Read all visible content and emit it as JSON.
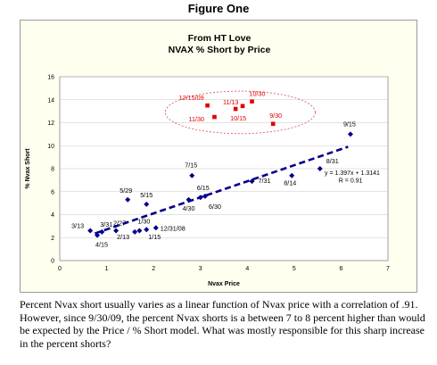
{
  "figure_label": "Figure One",
  "caption": "Percent Nvax short usually varies as a linear function of Nvax price with a correlation of .91. However, since 9/30/09, the percent Nvax shorts is a between 7 to 8 percent higher than would be expected by the Price / % Short model.  What was mostly responsible for this sharp increase in the percent shorts?",
  "chart_data": {
    "type": "scatter",
    "title": "From HT Love",
    "subtitle": "NVAX % Short by Price",
    "xlabel": "Nvax Price",
    "ylabel": "% Nvax Short",
    "xlim": [
      0,
      7
    ],
    "ylim": [
      0,
      16
    ],
    "x_ticks": [
      0,
      1,
      2,
      3,
      4,
      5,
      6,
      7
    ],
    "y_ticks": [
      0,
      2,
      4,
      6,
      8,
      10,
      12,
      14,
      16
    ],
    "grid": "horizontal",
    "series": [
      {
        "color": "#00008b",
        "marker": "diamond",
        "points": [
          {
            "x": 0.65,
            "y": 2.6,
            "label": "3/13"
          },
          {
            "x": 0.8,
            "y": 2.2,
            "label": "4/15"
          },
          {
            "x": 0.9,
            "y": 2.5,
            "label": "3/31"
          },
          {
            "x": 1.2,
            "y": 2.6,
            "label": "2/27"
          },
          {
            "x": 1.6,
            "y": 2.5,
            "label": "2/13"
          },
          {
            "x": 1.7,
            "y": 2.6,
            "label": "1/30"
          },
          {
            "x": 1.85,
            "y": 2.7,
            "label": "1/15"
          },
          {
            "x": 2.05,
            "y": 2.85,
            "label": "12/31/08"
          },
          {
            "x": 1.45,
            "y": 5.3,
            "label": "5/29"
          },
          {
            "x": 1.85,
            "y": 4.9,
            "label": "5/15"
          },
          {
            "x": 2.75,
            "y": 5.3,
            "label": "4/30"
          },
          {
            "x": 2.82,
            "y": 7.4,
            "label": "7/15"
          },
          {
            "x": 3.0,
            "y": 5.5,
            "label": "6/15"
          },
          {
            "x": 3.1,
            "y": 5.6,
            "label": "6/30"
          },
          {
            "x": 4.1,
            "y": 6.9,
            "label": "7/31"
          },
          {
            "x": 4.95,
            "y": 7.4,
            "label": "8/14"
          },
          {
            "x": 5.55,
            "y": 8.0,
            "label": "8/31"
          },
          {
            "x": 6.2,
            "y": 11.0,
            "label": "9/15"
          }
        ]
      },
      {
        "color": "#e00000",
        "marker": "square",
        "points": [
          {
            "x": 3.15,
            "y": 13.5,
            "label": "12/15/09"
          },
          {
            "x": 3.3,
            "y": 12.5,
            "label": "11/30"
          },
          {
            "x": 3.75,
            "y": 13.2,
            "label": "10/15"
          },
          {
            "x": 3.9,
            "y": 13.45,
            "label": "11/13"
          },
          {
            "x": 4.1,
            "y": 13.85,
            "label": "10/30"
          },
          {
            "x": 4.55,
            "y": 11.9,
            "label": "9/30"
          }
        ]
      }
    ],
    "trendline": {
      "x_start": 0.75,
      "x_end": 6.15,
      "slope": 1.397,
      "intercept": 1.3141,
      "equation": "y = 1.397x + 1.3141",
      "r_label": "R = 0.91",
      "color": "#00008b"
    },
    "highlight": {
      "shape": "ellipse",
      "color": "#e06060",
      "cx": 3.85,
      "cy": 12.9,
      "rx": 1.6,
      "ry": 1.85
    }
  }
}
